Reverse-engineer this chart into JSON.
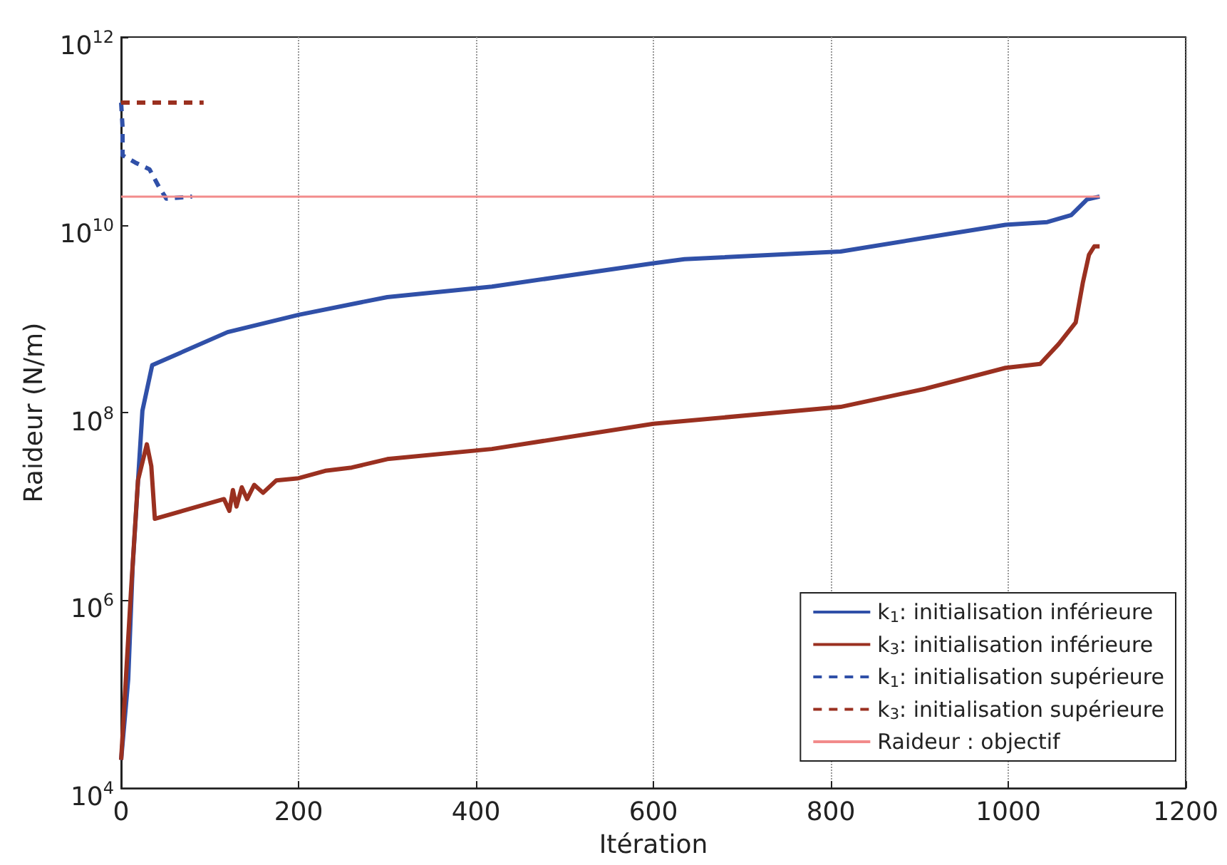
{
  "chart_data": {
    "type": "line",
    "xlabel": "Itération",
    "ylabel": "Raideur (N/m)",
    "xlim": [
      0,
      1200
    ],
    "xticks": [
      0,
      200,
      400,
      600,
      800,
      1000,
      1200
    ],
    "ylim": [
      10000,
      1000000000000
    ],
    "yticks": [
      {
        "value": 10000,
        "label": "10$^{4}$"
      },
      {
        "value": 1000000,
        "label": "10$^{6}$"
      },
      {
        "value": 100000000,
        "label": "10$^{8}$"
      },
      {
        "value": 10000000000,
        "label": "10$^{10}$"
      },
      {
        "value": 1000000000000,
        "label": "10$^{12}$"
      }
    ],
    "log": "y",
    "grid": "x",
    "legend": "bottom right",
    "marker": "none",
    "series": [
      {
        "name": "k$_{1}$: initialisation inférieure",
        "color": "#3050a8",
        "line_style": "solid",
        "x": [
          0,
          8,
          13,
          24,
          35,
          120,
          200,
          300,
          418,
          600,
          635,
          811,
          907,
          997,
          1044,
          1071,
          1089,
          1103
        ],
        "values": [
          20000,
          145000,
          2300000,
          105000000,
          320000000,
          720000000,
          1100000000,
          1700000000,
          2200000000,
          3900000000,
          4300000000,
          5200000000,
          7300000000,
          10000000000,
          10700000000,
          12700000000,
          18700000000,
          20000000000
        ]
      },
      {
        "name": "k$_{3}$: initialisation inférieure",
        "color": "#9a3020",
        "line_style": "solid",
        "x": [
          0,
          11,
          19,
          29,
          34,
          38,
          116,
          122,
          126,
          130,
          136,
          142,
          150,
          160,
          175,
          200,
          230,
          260,
          300,
          418,
          600,
          811,
          907,
          997,
          1036,
          1057,
          1076,
          1084,
          1091,
          1097,
          1103
        ],
        "values": [
          20000,
          1200000,
          19000000,
          46000000,
          27000000,
          7400000,
          12000000,
          9000000,
          15000000,
          10000000,
          16000000,
          12000000,
          17000000,
          14000000,
          19000000,
          20000000,
          24000000,
          26000000,
          32000000,
          41000000,
          76000000,
          115000000,
          180000000,
          300000000,
          330000000,
          540000000,
          910000000,
          2400000000,
          4800000000,
          5900000000,
          5900000000
        ]
      },
      {
        "name": "k$_{1}$: initialisation supérieure",
        "color": "#3050a8",
        "line_style": "dashed",
        "x": [
          0,
          1.6,
          1.6,
          16,
          32,
          43,
          51,
          80
        ],
        "values": [
          200000000000,
          110000000000,
          55000000000,
          46000000000,
          39000000000,
          25000000000,
          19000000000,
          20000000000
        ]
      },
      {
        "name": "k$_{3}$: initialisation supérieure",
        "color": "#9a3020",
        "line_style": "dashed",
        "x": [
          0,
          93
        ],
        "values": [
          200000000000,
          200000000000
        ]
      },
      {
        "name": "Raideur : objectif",
        "color": "#f28b8b",
        "line_style": "solid",
        "x": [
          0,
          1103
        ],
        "values": [
          20000000000,
          20000000000
        ]
      }
    ]
  }
}
